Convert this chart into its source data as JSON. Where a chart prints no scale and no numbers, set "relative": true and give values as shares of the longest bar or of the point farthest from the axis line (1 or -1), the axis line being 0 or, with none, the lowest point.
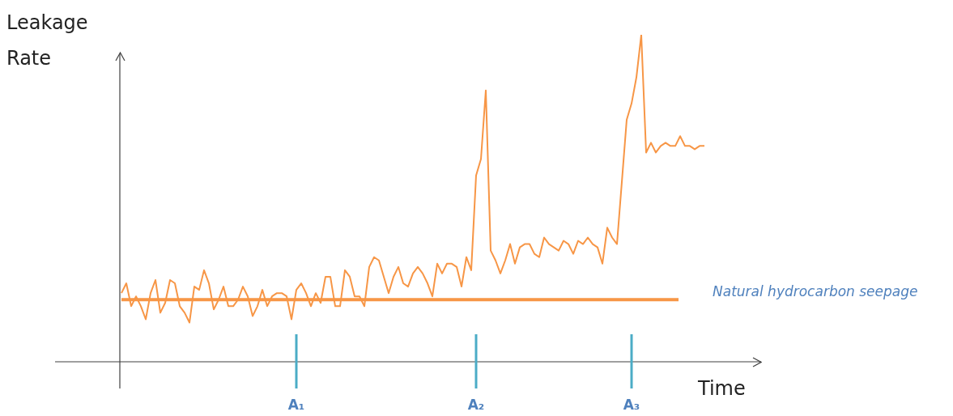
{
  "chart_data": {
    "type": "line",
    "relative": true,
    "xlabel": "Time",
    "ylabel": "Leakage Rate",
    "categories": [
      null,
      null,
      null,
      null,
      null,
      null,
      null,
      null,
      null,
      null,
      null,
      null,
      null,
      null,
      null,
      null,
      null,
      null,
      null,
      null,
      null,
      null,
      null,
      null,
      null,
      null,
      null,
      null,
      null,
      null,
      null,
      null,
      null,
      null,
      null,
      null,
      "A₁",
      null,
      null,
      null,
      null,
      null,
      null,
      null,
      null,
      null,
      null,
      null,
      null,
      null,
      null,
      null,
      null,
      null,
      null,
      null,
      null,
      null,
      null,
      null,
      null,
      null,
      null,
      null,
      null,
      null,
      null,
      null,
      null,
      null,
      null,
      null,
      null,
      "A₂",
      null,
      null,
      null,
      null,
      null,
      null,
      null,
      null,
      null,
      null,
      null,
      null,
      null,
      null,
      null,
      null,
      null,
      null,
      null,
      null,
      null,
      null,
      null,
      null,
      null,
      null,
      null,
      null,
      null,
      null,
      null,
      "A₃",
      null,
      null,
      null,
      null,
      null,
      null,
      null,
      null,
      null,
      null,
      null,
      null,
      null,
      null,
      null
    ],
    "values": [
      0.21,
      0.24,
      0.17,
      0.2,
      0.17,
      0.13,
      0.21,
      0.25,
      0.15,
      0.18,
      0.25,
      0.24,
      0.17,
      0.15,
      0.12,
      0.23,
      0.22,
      0.28,
      0.24,
      0.16,
      0.19,
      0.23,
      0.17,
      0.17,
      0.19,
      0.23,
      0.2,
      0.14,
      0.17,
      0.22,
      0.17,
      0.2,
      0.21,
      0.21,
      0.2,
      0.13,
      0.22,
      0.24,
      0.21,
      0.17,
      0.21,
      0.18,
      0.26,
      0.26,
      0.17,
      0.17,
      0.28,
      0.26,
      0.2,
      0.2,
      0.17,
      0.29,
      0.32,
      0.31,
      0.26,
      0.21,
      0.26,
      0.29,
      0.24,
      0.23,
      0.27,
      0.29,
      0.27,
      0.24,
      0.2,
      0.3,
      0.27,
      0.3,
      0.3,
      0.29,
      0.23,
      0.32,
      0.28,
      0.57,
      0.62,
      0.83,
      0.34,
      0.31,
      0.27,
      0.31,
      0.36,
      0.3,
      0.35,
      0.36,
      0.36,
      0.33,
      0.32,
      0.38,
      0.36,
      0.35,
      0.34,
      0.37,
      0.36,
      0.33,
      0.37,
      0.36,
      0.38,
      0.36,
      0.35,
      0.3,
      0.41,
      0.38,
      0.36,
      0.55,
      0.74,
      0.79,
      0.87,
      1,
      0.64,
      0.67,
      0.64,
      0.66,
      0.67,
      0.66,
      0.66,
      0.69,
      0.66,
      0.66,
      0.65,
      0.66,
      0.66
    ],
    "color": "#f79646",
    "marker": "none",
    "legend": false,
    "grid": false,
    "ref_lines": [
      {
        "axis": "y",
        "value": 0.19,
        "label": "Natural hydrocarbon seepage",
        "color": "#f79646"
      },
      {
        "axis": "x",
        "value": "A₁",
        "color": "#4bacc6"
      },
      {
        "axis": "x",
        "value": "A₂",
        "color": "#4bacc6"
      },
      {
        "axis": "x",
        "value": "A₃",
        "color": "#4bacc6"
      }
    ]
  }
}
